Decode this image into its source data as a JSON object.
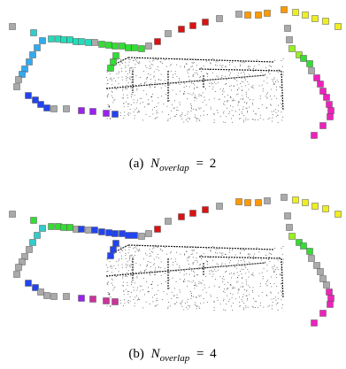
{
  "figure": {
    "panels": [
      {
        "label": "(a)",
        "symbol": "N",
        "subscript": "overlap",
        "relation": "=",
        "value": 2
      },
      {
        "label": "(b)",
        "symbol": "N",
        "subscript": "overlap",
        "relation": "=",
        "value": 4
      }
    ]
  }
}
